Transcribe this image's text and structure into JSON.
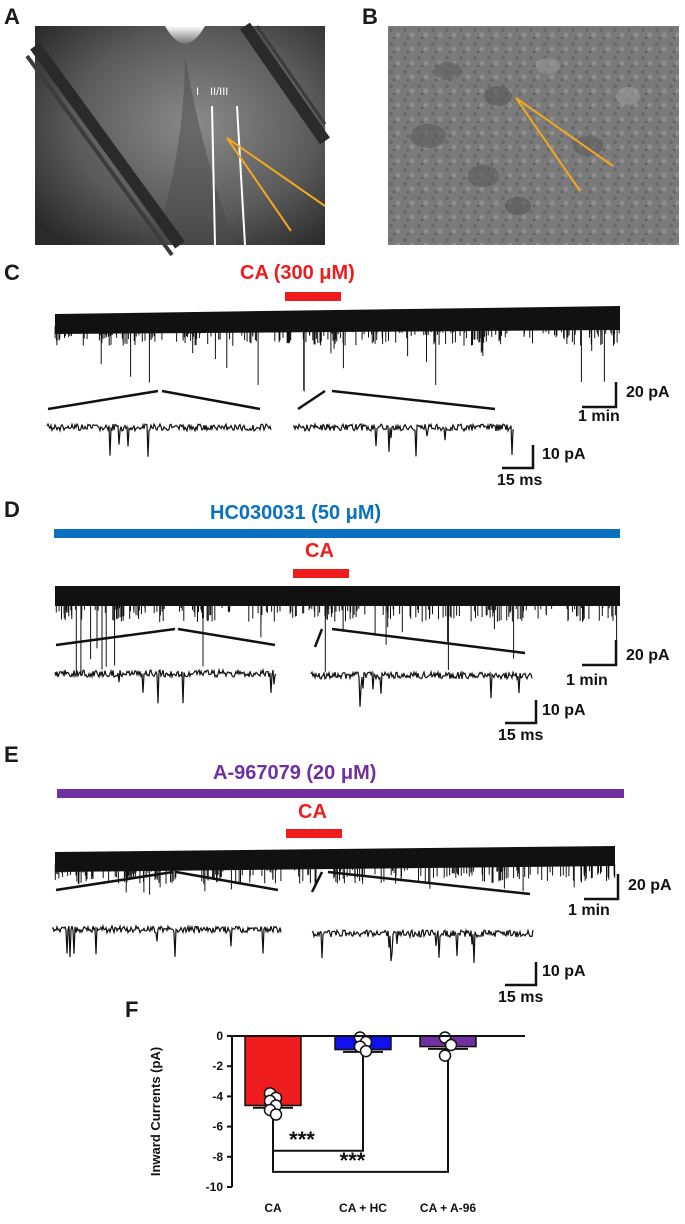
{
  "panels": {
    "a": {
      "letter": "A",
      "layer_label_1": "I",
      "layer_label_2": "II/III"
    },
    "b": {
      "letter": "B"
    },
    "c": {
      "letter": "C",
      "drug_label": "CA (300 μM)",
      "scale_long_y": "20 pA",
      "scale_long_x": "1 min",
      "scale_zoom_y": "10 pA",
      "scale_zoom_x": "15 ms"
    },
    "d": {
      "letter": "D",
      "antagonist_label": "HC030031 (50 μM)",
      "drug_label": "CA",
      "scale_long_y": "20 pA",
      "scale_long_x": "1 min",
      "scale_zoom_y": "10 pA",
      "scale_zoom_x": "15 ms"
    },
    "e": {
      "letter": "E",
      "antagonist_label": "A-967079 (20 μM)",
      "drug_label": "CA",
      "scale_long_y": "20 pA",
      "scale_long_x": "1 min",
      "scale_zoom_y": "10 pA",
      "scale_zoom_x": "15 ms"
    },
    "f": {
      "letter": "F"
    }
  },
  "colors": {
    "ca_red": "#ee1c1c",
    "hc_blue": "#0a70c0",
    "a96_purple": "#7030a0",
    "bar_hc": "#1010ee",
    "bar_a96": "#7030a0",
    "electrode_orange": "#f2a81e"
  },
  "chart_data": {
    "type": "bar",
    "title": "",
    "xlabel": "",
    "ylabel": "Inward Currents (pA)",
    "ylim": [
      -10,
      0
    ],
    "yticks": [
      0,
      -2,
      -4,
      -6,
      -8,
      -10
    ],
    "categories": [
      "CA",
      "CA + HC",
      "CA + A-96"
    ],
    "values": [
      -4.6,
      -0.9,
      -0.7
    ],
    "errors": [
      0.15,
      0.15,
      0.15
    ],
    "points": [
      [
        -3.8,
        -4.1,
        -4.3,
        -4.6,
        -4.9,
        -5.2
      ],
      [
        -0.1,
        -0.4,
        -0.7,
        -1.0
      ],
      [
        -0.1,
        -0.6,
        -1.3
      ]
    ],
    "bar_colors": [
      "#ee1c1c",
      "#1010ee",
      "#7030a0"
    ],
    "significance": [
      {
        "from": 0,
        "to": 1,
        "label": "***",
        "y": -7.6
      },
      {
        "from": 0,
        "to": 2,
        "label": "***",
        "y": -9.0
      }
    ]
  }
}
